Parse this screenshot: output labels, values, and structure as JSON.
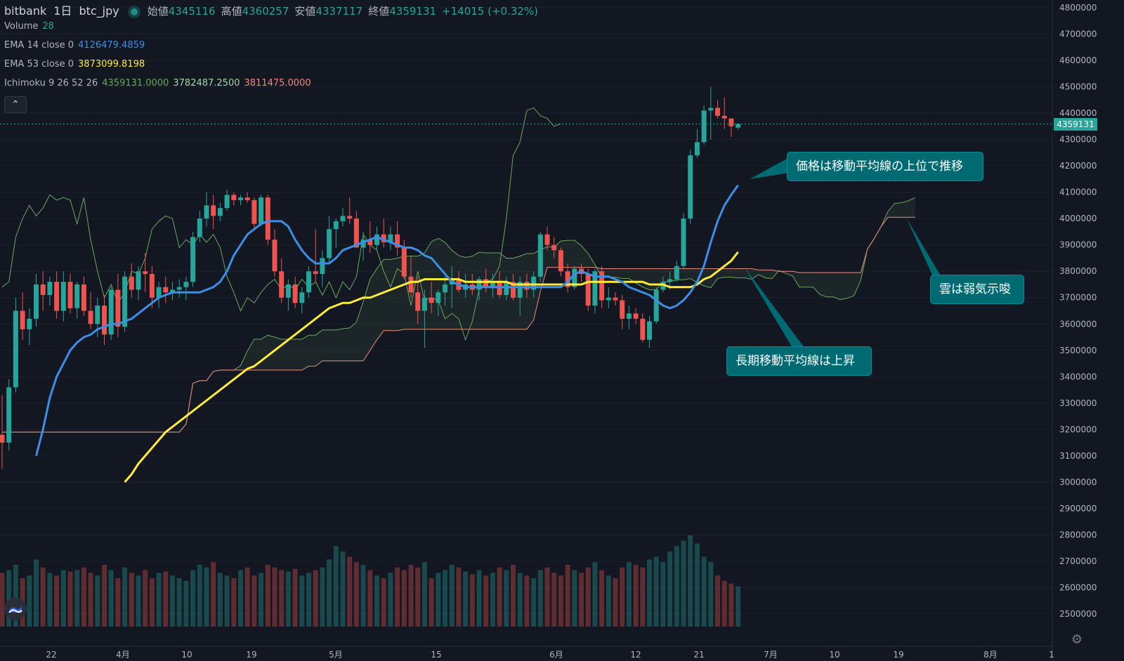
{
  "header": {
    "symbol": "bitbank",
    "interval": "1日",
    "pair": "btc_jpy",
    "ohlc": [
      {
        "label": "始値",
        "value": "4345116"
      },
      {
        "label": "高値",
        "value": "4360257"
      },
      {
        "label": "安値",
        "value": "4337117"
      },
      {
        "label": "終値",
        "value": "4359131"
      }
    ],
    "change": "+14015 (+0.32%)"
  },
  "indicators": {
    "volume": {
      "label": "Volume",
      "value": "28"
    },
    "ema14": {
      "label": "EMA 14 close 0",
      "value": "4126479.4859"
    },
    "ema53": {
      "label": "EMA 53 close 0",
      "value": "3873099.8198"
    },
    "ichimoku": {
      "label": "Ichimoku 9 26 52 26",
      "v1": "4359131.0000",
      "v2": "3782487.2500",
      "v3": "3811475.0000"
    }
  },
  "controls": {
    "collapse_icon": "chevron-up-icon",
    "settings_icon": "gear-icon",
    "logo_icon": "tradingview-logo-icon"
  },
  "last_price_label": "4359131",
  "annotations": [
    {
      "id": "callout-1",
      "text": "価格は移動平均線の上位で推移"
    },
    {
      "id": "callout-2",
      "text": "雲は弱気示唆"
    },
    {
      "id": "callout-3",
      "text": "長期移動平均線は上昇"
    }
  ],
  "colors": {
    "background": "#131722",
    "up": "#26a69a",
    "down": "#ef5350",
    "ema14": "#3d8ee6",
    "ema53": "#ffeb3b",
    "leading_span_a": "#6ba85f",
    "leading_span_b": "#ef8a80",
    "lagging_span": "#6ba85f",
    "callout": "#006a73"
  },
  "chart_data": {
    "type": "candlestick",
    "x_axis_labels": [
      "22",
      "4月",
      "10",
      "19",
      "5月",
      "15",
      "6月",
      "12",
      "21",
      "7月",
      "10",
      "19",
      "8月",
      "1"
    ],
    "y_axis": {
      "min": 2500000,
      "max": 4800000,
      "step": 100000
    },
    "last_price": 4359131,
    "candles": [
      [
        3180000,
        3330000,
        3050000,
        3150000
      ],
      [
        3150000,
        3390000,
        3120000,
        3360000
      ],
      [
        3360000,
        3700000,
        3340000,
        3650000
      ],
      [
        3650000,
        3720000,
        3540000,
        3580000
      ],
      [
        3580000,
        3660000,
        3520000,
        3620000
      ],
      [
        3620000,
        3790000,
        3590000,
        3750000
      ],
      [
        3750000,
        3800000,
        3650000,
        3710000
      ],
      [
        3710000,
        3780000,
        3670000,
        3760000
      ],
      [
        3760000,
        3800000,
        3620000,
        3650000
      ],
      [
        3650000,
        3800000,
        3610000,
        3760000
      ],
      [
        3760000,
        3790000,
        3640000,
        3660000
      ],
      [
        3660000,
        3760000,
        3620000,
        3750000
      ],
      [
        3750000,
        3780000,
        3630000,
        3650000
      ],
      [
        3650000,
        3720000,
        3580000,
        3600000
      ],
      [
        3600000,
        3700000,
        3550000,
        3670000
      ],
      [
        3670000,
        3710000,
        3520000,
        3560000
      ],
      [
        3560000,
        3740000,
        3540000,
        3730000
      ],
      [
        3730000,
        3790000,
        3550000,
        3590000
      ],
      [
        3590000,
        3800000,
        3570000,
        3780000
      ],
      [
        3780000,
        3830000,
        3700000,
        3730000
      ],
      [
        3730000,
        3820000,
        3690000,
        3800000
      ],
      [
        3800000,
        3870000,
        3720000,
        3790000
      ],
      [
        3790000,
        3820000,
        3660000,
        3700000
      ],
      [
        3700000,
        3760000,
        3660000,
        3740000
      ],
      [
        3740000,
        3780000,
        3680000,
        3720000
      ],
      [
        3720000,
        3760000,
        3690000,
        3730000
      ],
      [
        3730000,
        3770000,
        3700000,
        3740000
      ],
      [
        3740000,
        3780000,
        3690000,
        3760000
      ],
      [
        3760000,
        3950000,
        3740000,
        3930000
      ],
      [
        3930000,
        4030000,
        3910000,
        4000000
      ],
      [
        4000000,
        4100000,
        3970000,
        4050000
      ],
      [
        4050000,
        4090000,
        3960000,
        4010000
      ],
      [
        4010000,
        4060000,
        3990000,
        4040000
      ],
      [
        4040000,
        4110000,
        4030000,
        4090000
      ],
      [
        4090000,
        4100000,
        4050000,
        4070000
      ],
      [
        4070000,
        4090000,
        4050000,
        4080000
      ],
      [
        4080000,
        4100000,
        4060000,
        4070000
      ],
      [
        4070000,
        4080000,
        3960000,
        3980000
      ],
      [
        3980000,
        4090000,
        3970000,
        4080000
      ],
      [
        4080000,
        4090000,
        3900000,
        3920000
      ],
      [
        3920000,
        3960000,
        3780000,
        3800000
      ],
      [
        3800000,
        3850000,
        3680000,
        3700000
      ],
      [
        3700000,
        3770000,
        3650000,
        3750000
      ],
      [
        3750000,
        3780000,
        3660000,
        3680000
      ],
      [
        3680000,
        3740000,
        3640000,
        3720000
      ],
      [
        3720000,
        3820000,
        3700000,
        3800000
      ],
      [
        3800000,
        3960000,
        3760000,
        3790000
      ],
      [
        3790000,
        3880000,
        3740000,
        3850000
      ],
      [
        3850000,
        4010000,
        3830000,
        3960000
      ],
      [
        3960000,
        4000000,
        3890000,
        3990000
      ],
      [
        3990000,
        4040000,
        3970000,
        4010000
      ],
      [
        4010000,
        4080000,
        3980000,
        4000000
      ],
      [
        4000000,
        4030000,
        3890000,
        3890000
      ],
      [
        3890000,
        3950000,
        3840000,
        3920000
      ],
      [
        3920000,
        3990000,
        3870000,
        3900000
      ],
      [
        3900000,
        3970000,
        3880000,
        3940000
      ],
      [
        3940000,
        4000000,
        3890000,
        3910000
      ],
      [
        3910000,
        3970000,
        3880000,
        3940000
      ],
      [
        3940000,
        3990000,
        3860000,
        3890000
      ],
      [
        3890000,
        3920000,
        3770000,
        3780000
      ],
      [
        3780000,
        3860000,
        3700000,
        3720000
      ],
      [
        3720000,
        3780000,
        3600000,
        3650000
      ],
      [
        3650000,
        3730000,
        3510000,
        3700000
      ],
      [
        3700000,
        3760000,
        3640000,
        3680000
      ],
      [
        3680000,
        3730000,
        3630000,
        3720000
      ],
      [
        3720000,
        3780000,
        3670000,
        3750000
      ],
      [
        3750000,
        3820000,
        3660000,
        3770000
      ],
      [
        3770000,
        3800000,
        3720000,
        3730000
      ],
      [
        3730000,
        3790000,
        3700000,
        3750000
      ],
      [
        3750000,
        3790000,
        3710000,
        3730000
      ],
      [
        3730000,
        3780000,
        3690000,
        3770000
      ],
      [
        3770000,
        3810000,
        3720000,
        3740000
      ],
      [
        3740000,
        3790000,
        3700000,
        3760000
      ],
      [
        3760000,
        3800000,
        3700000,
        3710000
      ],
      [
        3710000,
        3780000,
        3690000,
        3760000
      ],
      [
        3760000,
        3790000,
        3690000,
        3700000
      ],
      [
        3700000,
        3780000,
        3630000,
        3760000
      ],
      [
        3760000,
        3790000,
        3700000,
        3730000
      ],
      [
        3730000,
        3800000,
        3700000,
        3780000
      ],
      [
        3780000,
        3950000,
        3760000,
        3940000
      ],
      [
        3940000,
        3970000,
        3880000,
        3900000
      ],
      [
        3900000,
        3930000,
        3850000,
        3880000
      ],
      [
        3880000,
        3890000,
        3780000,
        3800000
      ],
      [
        3800000,
        3830000,
        3720000,
        3740000
      ],
      [
        3740000,
        3820000,
        3730000,
        3810000
      ],
      [
        3810000,
        3830000,
        3760000,
        3790000
      ],
      [
        3790000,
        3810000,
        3650000,
        3670000
      ],
      [
        3670000,
        3810000,
        3640000,
        3800000
      ],
      [
        3800000,
        3820000,
        3660000,
        3690000
      ],
      [
        3690000,
        3740000,
        3660000,
        3700000
      ],
      [
        3700000,
        3720000,
        3670000,
        3690000
      ],
      [
        3690000,
        3710000,
        3580000,
        3620000
      ],
      [
        3620000,
        3670000,
        3580000,
        3640000
      ],
      [
        3640000,
        3660000,
        3600000,
        3620000
      ],
      [
        3620000,
        3640000,
        3530000,
        3540000
      ],
      [
        3540000,
        3630000,
        3510000,
        3610000
      ],
      [
        3610000,
        3740000,
        3600000,
        3730000
      ],
      [
        3730000,
        3780000,
        3720000,
        3760000
      ],
      [
        3760000,
        3800000,
        3730000,
        3770000
      ],
      [
        3770000,
        3840000,
        3760000,
        3820000
      ],
      [
        3820000,
        4020000,
        3810000,
        4000000
      ],
      [
        4000000,
        4260000,
        3980000,
        4240000
      ],
      [
        4240000,
        4340000,
        4230000,
        4290000
      ],
      [
        4290000,
        4430000,
        4280000,
        4410000
      ],
      [
        4410000,
        4500000,
        4300000,
        4420000
      ],
      [
        4420000,
        4450000,
        4380000,
        4390000
      ],
      [
        4390000,
        4460000,
        4340000,
        4380000
      ],
      [
        4380000,
        4380000,
        4310000,
        4350000
      ],
      [
        4345116,
        4360257,
        4337117,
        4359131
      ]
    ],
    "volume": [
      200,
      210,
      230,
      180,
      190,
      250,
      220,
      200,
      190,
      210,
      205,
      210,
      220,
      200,
      190,
      230,
      210,
      180,
      220,
      200,
      190,
      210,
      180,
      200,
      205,
      190,
      180,
      170,
      210,
      230,
      220,
      240,
      200,
      190,
      180,
      210,
      220,
      190,
      200,
      230,
      220,
      210,
      205,
      215,
      190,
      200,
      210,
      220,
      250,
      300,
      280,
      260,
      240,
      230,
      210,
      190,
      180,
      200,
      220,
      210,
      230,
      220,
      240,
      180,
      200,
      210,
      230,
      220,
      205,
      195,
      210,
      190,
      200,
      220,
      210,
      230,
      200,
      190,
      180,
      210,
      220,
      200,
      190,
      230,
      210,
      200,
      220,
      240,
      210,
      190,
      180,
      220,
      240,
      230,
      220,
      250,
      260,
      240,
      280,
      300,
      320,
      340,
      310,
      260,
      240,
      190,
      170,
      160,
      150
    ],
    "ema14": [
      3100000,
      3200000,
      3320000,
      3400000,
      3450000,
      3500000,
      3530000,
      3550000,
      3560000,
      3580000,
      3590000,
      3600000,
      3600000,
      3610000,
      3620000,
      3640000,
      3660000,
      3680000,
      3700000,
      3710000,
      3720000,
      3720000,
      3720000,
      3720000,
      3720000,
      3730000,
      3740000,
      3760000,
      3800000,
      3860000,
      3900000,
      3940000,
      3960000,
      3980000,
      3990000,
      3990000,
      3990000,
      3970000,
      3920000,
      3880000,
      3850000,
      3830000,
      3830000,
      3830000,
      3850000,
      3880000,
      3890000,
      3900000,
      3910000,
      3920000,
      3930000,
      3920000,
      3910000,
      3900000,
      3890000,
      3890000,
      3880000,
      3860000,
      3850000,
      3820000,
      3790000,
      3760000,
      3750000,
      3740000,
      3740000,
      3740000,
      3740000,
      3740000,
      3740000,
      3740000,
      3740000,
      3740000,
      3740000,
      3740000,
      3740000,
      3740000,
      3740000,
      3740000,
      3760000,
      3790000,
      3800000,
      3790000,
      3780000,
      3780000,
      3780000,
      3770000,
      3760000,
      3740000,
      3730000,
      3720000,
      3710000,
      3690000,
      3670000,
      3660000,
      3670000,
      3690000,
      3720000,
      3760000,
      3820000,
      3910000,
      3990000,
      4050000,
      4090000,
      4126479
    ],
    "ema53": [
      3000000,
      3030000,
      3070000,
      3100000,
      3130000,
      3160000,
      3190000,
      3210000,
      3230000,
      3250000,
      3270000,
      3290000,
      3310000,
      3330000,
      3350000,
      3370000,
      3390000,
      3410000,
      3430000,
      3440000,
      3460000,
      3480000,
      3500000,
      3520000,
      3540000,
      3560000,
      3580000,
      3600000,
      3620000,
      3640000,
      3660000,
      3670000,
      3680000,
      3680000,
      3690000,
      3700000,
      3700000,
      3710000,
      3720000,
      3730000,
      3740000,
      3750000,
      3760000,
      3760000,
      3770000,
      3770000,
      3770000,
      3770000,
      3770000,
      3770000,
      3760000,
      3760000,
      3760000,
      3760000,
      3760000,
      3760000,
      3760000,
      3750000,
      3750000,
      3750000,
      3750000,
      3750000,
      3750000,
      3750000,
      3750000,
      3750000,
      3750000,
      3750000,
      3760000,
      3760000,
      3760000,
      3760000,
      3760000,
      3760000,
      3760000,
      3760000,
      3760000,
      3750000,
      3750000,
      3750000,
      3740000,
      3740000,
      3740000,
      3740000,
      3750000,
      3770000,
      3780000,
      3800000,
      3820000,
      3840000,
      3873099
    ]
  }
}
